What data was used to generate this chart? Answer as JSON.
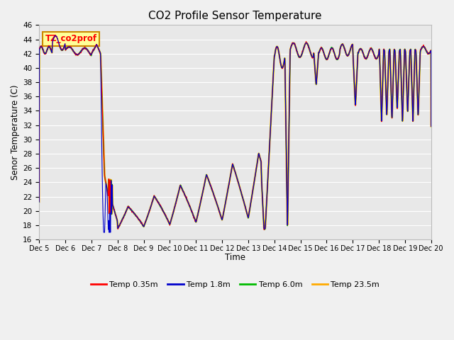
{
  "title": "CO2 Profile Sensor Temperature",
  "xlabel": "Time",
  "ylabel": "Senor Temperature (C)",
  "ylim": [
    16,
    46
  ],
  "yticks": [
    16,
    18,
    20,
    22,
    24,
    26,
    28,
    30,
    32,
    34,
    36,
    38,
    40,
    42,
    44,
    46
  ],
  "xtick_labels": [
    "Dec 5",
    "Dec 6",
    "Dec 7",
    "Dec 8",
    "Dec 9",
    "Dec 10",
    "Dec 11",
    "Dec 12",
    "Dec 13",
    "Dec 14",
    "Dec 15",
    "Dec 16",
    "Dec 17",
    "Dec 18",
    "Dec 19",
    "Dec 20"
  ],
  "legend_labels": [
    "Temp 0.35m",
    "Temp 1.8m",
    "Temp 6.0m",
    "Temp 23.5m"
  ],
  "legend_colors": [
    "#ff0000",
    "#0000cc",
    "#00bb00",
    "#ffaa00"
  ],
  "annotation_text": "TZ_co2prof",
  "annotation_bg": "#ffff99",
  "annotation_border": "#cc8800",
  "fig_bg": "#f0f0f0",
  "plot_bg": "#e8e8e8",
  "grid_color": "#ffffff",
  "title_fontsize": 11
}
